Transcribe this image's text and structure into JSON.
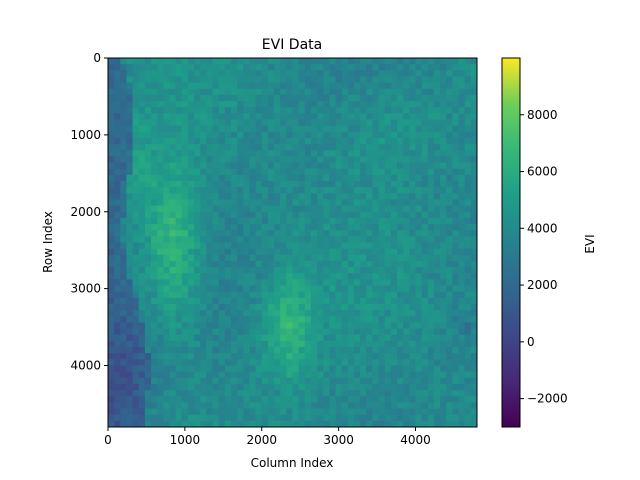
{
  "chart_data": {
    "type": "heatmap",
    "title": "EVI Data",
    "xlabel": "Column Index",
    "ylabel": "Row Index",
    "colorbar_label": "EVI",
    "colormap": "viridis",
    "xlim": [
      0,
      4800
    ],
    "ylim": [
      4800,
      0
    ],
    "x_ticks": [
      0,
      1000,
      2000,
      3000,
      4000
    ],
    "y_ticks": [
      0,
      1000,
      2000,
      3000,
      4000
    ],
    "colorbar_range": [
      -3000,
      10000
    ],
    "colorbar_ticks": [
      -2000,
      0,
      2000,
      4000,
      6000,
      8000
    ],
    "colorbar_tick_labels": [
      "−2000",
      "0",
      "2000",
      "4000",
      "6000",
      "8000"
    ],
    "data_description": "Satellite EVI raster; mostly 2000-5000, brighter (6000-8000) patches around columns 500-1200 / rows 1000-4000 and columns 2000-2800 / rows 3000-4500; dark (~0) regions along the left edge."
  },
  "colors": {
    "viridis_low": "#440154",
    "viridis_high": "#fde725",
    "base_field": "#2f8f87"
  }
}
